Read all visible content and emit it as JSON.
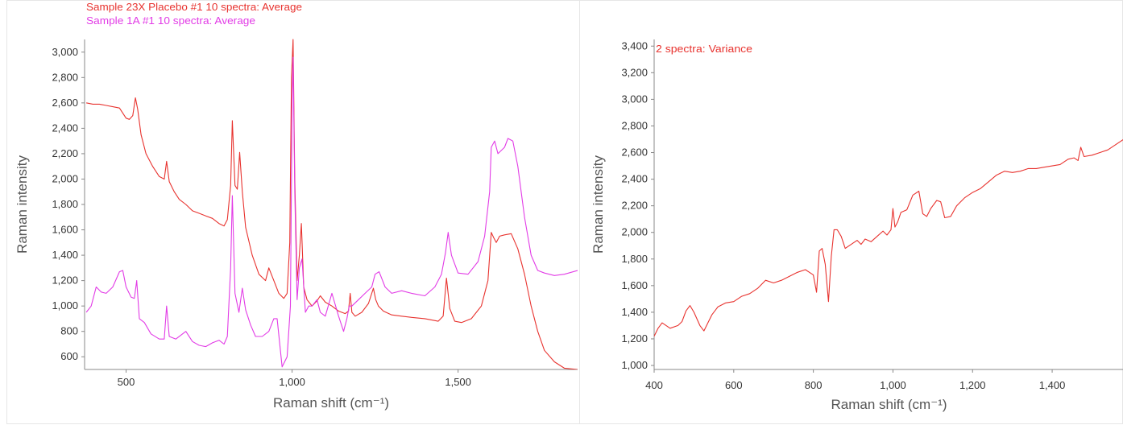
{
  "colors": {
    "red": "#e8332f",
    "magenta": "#e23ce6",
    "axis": "#888888"
  },
  "chart_data": [
    {
      "type": "line",
      "xlabel": "Raman shift (cm⁻¹)",
      "ylabel": "Raman intensity",
      "xlim": [
        375,
        1860
      ],
      "ylim": [
        500,
        3100
      ],
      "xticks": [
        {
          "v": 500,
          "label": "500"
        },
        {
          "v": 1000,
          "label": "1,000"
        },
        {
          "v": 1500,
          "label": "1,500"
        }
      ],
      "yticks": [
        {
          "v": 600,
          "label": "600"
        },
        {
          "v": 800,
          "label": "800"
        },
        {
          "v": 1000,
          "label": "1,000"
        },
        {
          "v": 1200,
          "label": "1,200"
        },
        {
          "v": 1400,
          "label": "1,400"
        },
        {
          "v": 1600,
          "label": "1,600"
        },
        {
          "v": 1800,
          "label": "1,800"
        },
        {
          "v": 2000,
          "label": "2,000"
        },
        {
          "v": 2200,
          "label": "2,200"
        },
        {
          "v": 2400,
          "label": "2,400"
        },
        {
          "v": 2600,
          "label": "2,600"
        },
        {
          "v": 2800,
          "label": "2,800"
        },
        {
          "v": 3000,
          "label": "3,000"
        }
      ],
      "legend_position": "top-left",
      "series": [
        {
          "name": "Sample 23X Placebo #1 10 spectra: Average",
          "color": "#e8332f",
          "x": [
            380,
            400,
            420,
            440,
            460,
            480,
            500,
            510,
            520,
            528,
            535,
            545,
            560,
            580,
            600,
            615,
            622,
            630,
            645,
            660,
            680,
            700,
            720,
            740,
            760,
            780,
            795,
            805,
            815,
            820,
            828,
            835,
            842,
            850,
            860,
            880,
            900,
            920,
            930,
            945,
            960,
            975,
            985,
            993,
            998,
            1003,
            1008,
            1015,
            1022,
            1028,
            1035,
            1045,
            1060,
            1075,
            1085,
            1100,
            1120,
            1140,
            1160,
            1170,
            1175,
            1180,
            1190,
            1210,
            1230,
            1245,
            1252,
            1260,
            1275,
            1300,
            1330,
            1360,
            1400,
            1440,
            1455,
            1465,
            1475,
            1490,
            1510,
            1540,
            1570,
            1590,
            1600,
            1607,
            1615,
            1625,
            1640,
            1660,
            1680,
            1700,
            1720,
            1740,
            1760,
            1790,
            1820,
            1860
          ],
          "y": [
            2600,
            2590,
            2590,
            2580,
            2570,
            2560,
            2480,
            2470,
            2500,
            2640,
            2550,
            2350,
            2200,
            2100,
            2020,
            2000,
            2140,
            1980,
            1900,
            1840,
            1800,
            1750,
            1730,
            1710,
            1690,
            1650,
            1630,
            1680,
            1950,
            2460,
            1950,
            1920,
            2210,
            1900,
            1620,
            1400,
            1250,
            1200,
            1300,
            1200,
            1100,
            1060,
            1100,
            1500,
            2800,
            3100,
            2000,
            1200,
            1400,
            1650,
            1150,
            1050,
            1000,
            1040,
            1080,
            1030,
            1000,
            960,
            940,
            960,
            1100,
            950,
            920,
            950,
            1020,
            1140,
            1050,
            1000,
            960,
            930,
            920,
            910,
            900,
            880,
            920,
            1220,
            980,
            880,
            870,
            900,
            1000,
            1200,
            1580,
            1540,
            1500,
            1550,
            1560,
            1570,
            1450,
            1250,
            1000,
            800,
            650,
            560,
            510,
            500
          ]
        },
        {
          "name": "Sample 1A #1 10 spectra: Average",
          "color": "#e23ce6",
          "x": [
            380,
            395,
            410,
            425,
            440,
            460,
            480,
            490,
            500,
            515,
            525,
            532,
            540,
            555,
            575,
            600,
            615,
            622,
            630,
            650,
            680,
            700,
            720,
            740,
            760,
            780,
            795,
            805,
            815,
            820,
            828,
            840,
            850,
            860,
            875,
            890,
            910,
            930,
            945,
            955,
            970,
            985,
            995,
            1000,
            1003,
            1008,
            1015,
            1022,
            1030,
            1040,
            1050,
            1060,
            1075,
            1085,
            1100,
            1120,
            1140,
            1155,
            1165,
            1172,
            1180,
            1200,
            1220,
            1240,
            1250,
            1262,
            1280,
            1300,
            1330,
            1360,
            1400,
            1430,
            1450,
            1462,
            1470,
            1480,
            1500,
            1530,
            1560,
            1580,
            1595,
            1600,
            1610,
            1620,
            1640,
            1650,
            1665,
            1680,
            1700,
            1720,
            1740,
            1760,
            1790,
            1820,
            1860
          ],
          "y": [
            950,
            1000,
            1150,
            1110,
            1100,
            1150,
            1270,
            1280,
            1150,
            1070,
            1060,
            1200,
            900,
            870,
            780,
            740,
            740,
            1000,
            760,
            740,
            800,
            720,
            690,
            680,
            710,
            730,
            700,
            760,
            1300,
            1870,
            1100,
            950,
            1140,
            970,
            850,
            760,
            760,
            800,
            900,
            900,
            520,
            600,
            1000,
            2600,
            2960,
            1900,
            1050,
            1300,
            1370,
            950,
            1000,
            1000,
            1050,
            950,
            920,
            1100,
            920,
            800,
            900,
            1000,
            1000,
            1050,
            1100,
            1150,
            1250,
            1270,
            1150,
            1100,
            1120,
            1100,
            1080,
            1150,
            1250,
            1420,
            1580,
            1400,
            1260,
            1250,
            1350,
            1550,
            1900,
            2250,
            2300,
            2200,
            2250,
            2320,
            2300,
            2100,
            1700,
            1400,
            1280,
            1260,
            1240,
            1250,
            1280
          ]
        }
      ]
    },
    {
      "type": "line",
      "xlabel": "Raman shift (cm⁻¹)",
      "ylabel": "Raman intensity",
      "xlim": [
        400,
        1580
      ],
      "ylim": [
        970,
        3450
      ],
      "xticks": [
        {
          "v": 400,
          "label": "400"
        },
        {
          "v": 600,
          "label": "600"
        },
        {
          "v": 800,
          "label": "800"
        },
        {
          "v": 1000,
          "label": "1,000"
        },
        {
          "v": 1200,
          "label": "1,200"
        },
        {
          "v": 1400,
          "label": "1,400"
        }
      ],
      "yticks": [
        {
          "v": 1000,
          "label": "1,000"
        },
        {
          "v": 1200,
          "label": "1,200"
        },
        {
          "v": 1400,
          "label": "1,400"
        },
        {
          "v": 1600,
          "label": "1,600"
        },
        {
          "v": 1800,
          "label": "1,800"
        },
        {
          "v": 2000,
          "label": "2,000"
        },
        {
          "v": 2200,
          "label": "2,200"
        },
        {
          "v": 2400,
          "label": "2,400"
        },
        {
          "v": 2600,
          "label": "2,600"
        },
        {
          "v": 2800,
          "label": "2,800"
        },
        {
          "v": 3000,
          "label": "3,000"
        },
        {
          "v": 3200,
          "label": "3,200"
        },
        {
          "v": 3400,
          "label": "3,400"
        }
      ],
      "legend_position": "top-left",
      "series": [
        {
          "name": "2 spectra: Variance",
          "color": "#e8332f",
          "x": [
            400,
            410,
            420,
            440,
            460,
            470,
            480,
            490,
            500,
            515,
            525,
            535,
            545,
            560,
            580,
            600,
            620,
            640,
            660,
            680,
            700,
            720,
            740,
            760,
            780,
            790,
            800,
            808,
            815,
            822,
            830,
            838,
            845,
            852,
            860,
            870,
            880,
            895,
            910,
            920,
            930,
            945,
            960,
            975,
            985,
            995,
            1000,
            1005,
            1012,
            1020,
            1035,
            1050,
            1065,
            1075,
            1085,
            1095,
            1110,
            1120,
            1130,
            1145,
            1160,
            1180,
            1200,
            1220,
            1240,
            1260,
            1280,
            1300,
            1320,
            1340,
            1360,
            1380,
            1400,
            1420,
            1440,
            1455,
            1465,
            1472,
            1480,
            1500,
            1520,
            1540,
            1560,
            1580
          ],
          "y": [
            1220,
            1280,
            1320,
            1280,
            1300,
            1330,
            1410,
            1450,
            1400,
            1300,
            1260,
            1320,
            1380,
            1440,
            1470,
            1480,
            1520,
            1540,
            1580,
            1640,
            1620,
            1640,
            1670,
            1700,
            1720,
            1700,
            1680,
            1550,
            1860,
            1880,
            1760,
            1480,
            1820,
            2020,
            2020,
            1970,
            1880,
            1910,
            1940,
            1910,
            1950,
            1930,
            1970,
            2010,
            1980,
            2020,
            2180,
            2040,
            2080,
            2150,
            2170,
            2280,
            2310,
            2140,
            2120,
            2180,
            2240,
            2230,
            2110,
            2120,
            2200,
            2260,
            2300,
            2330,
            2380,
            2430,
            2460,
            2450,
            2460,
            2480,
            2480,
            2490,
            2500,
            2510,
            2550,
            2560,
            2540,
            2640,
            2570,
            2580,
            2600,
            2620,
            2660,
            2700
          ]
        }
      ]
    }
  ]
}
